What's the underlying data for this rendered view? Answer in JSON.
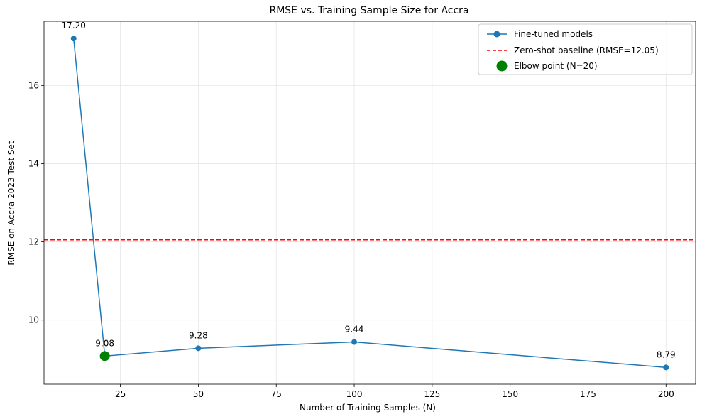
{
  "chart_data": {
    "type": "line",
    "title": "RMSE vs. Training Sample Size for Accra",
    "xlabel": "Number of Training Samples (N)",
    "ylabel": "RMSE on Accra 2023 Test Set",
    "xlim": [
      0.5,
      209.5
    ],
    "ylim": [
      8.36,
      17.64
    ],
    "xticks": [
      25,
      50,
      75,
      100,
      125,
      150,
      175,
      200
    ],
    "xtick_labels": [
      "25",
      "50",
      "75",
      "100",
      "125",
      "150",
      "175",
      "200"
    ],
    "yticks": [
      10,
      12,
      14,
      16
    ],
    "ytick_labels": [
      "10",
      "12",
      "14",
      "16"
    ],
    "grid": true,
    "legend_position": "top-right",
    "series": [
      {
        "name": "Fine-tuned models",
        "x": [
          10,
          20,
          50,
          100,
          200
        ],
        "values": [
          17.2,
          9.08,
          9.28,
          9.44,
          8.79
        ],
        "data_labels": [
          "17.20",
          "9.08",
          "9.28",
          "9.44",
          "8.79"
        ],
        "color": "#1f77b4"
      }
    ],
    "baseline": {
      "name": "Zero-shot baseline (RMSE=12.05)",
      "value": 12.05,
      "color": "#ff0000"
    },
    "highlight": {
      "name": "Elbow point (N=20)",
      "x": 20,
      "y": 9.08,
      "color": "#008000"
    }
  }
}
